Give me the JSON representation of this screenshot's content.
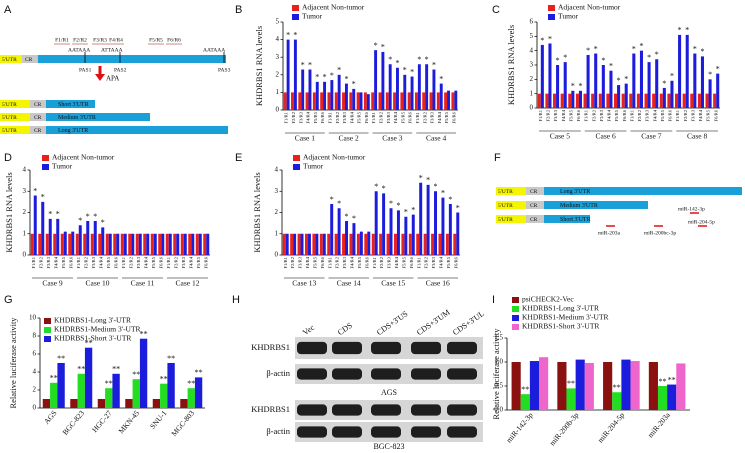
{
  "panel_a": {
    "panel": "A",
    "primers": [
      "F1/R1",
      "F2/R2",
      "F3/R3",
      "F4/R4",
      "F5/R5",
      "F6/R6"
    ],
    "signals": [
      "AATAAA",
      "ATTAAA",
      "AATAAA"
    ],
    "pas": [
      "PAS1",
      "PAS2",
      "PAS3"
    ],
    "apa": "APA",
    "utr5": "5'UTR",
    "cr": "CR",
    "isoforms": [
      "Short 3'UTR",
      "Medium 3'UTR",
      "Long 3'UTR"
    ]
  },
  "panel_f": {
    "panel": "F",
    "utr5": "5'UTR",
    "cr": "CR",
    "isoforms": [
      "Long 3'UTR",
      "Medium 3'UTR",
      "Short 3'UTR"
    ],
    "mirnas": [
      "miR-142-3p",
      "miR-204-5p",
      "miR-203a",
      "miR-200bc-3p"
    ]
  },
  "panel_h": {
    "panel": "H",
    "lanes": [
      "Vec",
      "CDS",
      "CDS+3'US",
      "CDS+3'UM",
      "CDS+3'UL"
    ],
    "rows": [
      "KHDRBS1",
      "β-actin",
      "KHDRBS1",
      "β-actin"
    ],
    "cell_lines": [
      "AGS",
      "BGC-823"
    ]
  },
  "chart_data": [
    {
      "panel": "B",
      "type": "bar",
      "y_label": "KHDRBS1 RNA levels",
      "categories": [
        "F1/R1",
        "F2/R2",
        "F3/R3",
        "F4/R4",
        "F5/R5",
        "F6/R6",
        "F1/R1",
        "F2/R2",
        "F3/R3",
        "F4/R4",
        "F5/R5",
        "F6/R6",
        "F1/R1",
        "F2/R2",
        "F3/R3",
        "F4/R4",
        "F5/R5",
        "F6/R6",
        "F1/R1",
        "F2/R2",
        "F3/R3",
        "F4/R4",
        "F5/R5",
        "F6/R6"
      ],
      "groups": [
        "Case 1",
        "Case 2",
        "Case 3",
        "Case 4"
      ],
      "series": [
        {
          "name": "Adjacent Non-tumor",
          "color": "#e8211c",
          "values": [
            1,
            1,
            1,
            1,
            1,
            1,
            1,
            1,
            1,
            1,
            1,
            1,
            1,
            1,
            1,
            1,
            1,
            1,
            1,
            1,
            1,
            1,
            1,
            1
          ]
        },
        {
          "name": "Tumor",
          "color": "#1c1cdc",
          "values": [
            4.0,
            4.0,
            2.3,
            2.3,
            1.6,
            1.6,
            1.7,
            2.0,
            1.5,
            1.2,
            1.0,
            0.9,
            3.4,
            3.3,
            2.6,
            2.4,
            2.0,
            1.9,
            2.6,
            2.6,
            2.3,
            1.5,
            1.1,
            1.1
          ],
          "significance": [
            "*",
            "*",
            "*",
            "*",
            "*",
            "*",
            "*",
            "*",
            "*",
            "*",
            null,
            null,
            "*",
            "*",
            "*",
            "*",
            "*",
            "*",
            "*",
            "*",
            "*",
            "*",
            null,
            null
          ]
        }
      ],
      "ylim": [
        0,
        5
      ],
      "yticks": [
        0,
        1,
        2,
        3,
        4,
        5
      ]
    },
    {
      "panel": "C",
      "type": "bar",
      "y_label": "KHDRBS1 RNA levels",
      "categories": [
        "F1/R1",
        "F2/R2",
        "F3/R3",
        "F4/R4",
        "F5/R5",
        "F6/R6",
        "F1/R1",
        "F2/R2",
        "F3/R3",
        "F4/R4",
        "F5/R5",
        "F6/R6",
        "F1/R1",
        "F2/R2",
        "F3/R3",
        "F4/R4",
        "F5/R5",
        "F6/R6",
        "F1/R1",
        "F2/R2",
        "F3/R3",
        "F4/R4",
        "F5/R5",
        "F6/R6"
      ],
      "groups": [
        "Case 5",
        "Case 6",
        "Case 7",
        "Case 8"
      ],
      "series": [
        {
          "name": "Adjacent Non-tumor",
          "color": "#e8211c",
          "values": [
            1,
            1,
            1,
            1,
            1,
            1,
            1,
            1,
            1,
            1,
            1,
            1,
            1,
            1,
            1,
            1,
            1,
            1,
            1,
            1,
            1,
            1,
            1,
            1
          ]
        },
        {
          "name": "Tumor",
          "color": "#1c1cdc",
          "values": [
            4.4,
            4.5,
            3.0,
            3.2,
            1.2,
            1.2,
            3.7,
            3.8,
            3.0,
            2.6,
            1.6,
            1.7,
            3.8,
            4.0,
            3.2,
            3.4,
            1.4,
            1.9,
            5.1,
            5.1,
            3.8,
            3.6,
            2.0,
            2.4
          ],
          "significance": [
            "*",
            "*",
            "*",
            "*",
            "*",
            "*",
            "*",
            "*",
            "*",
            "*",
            "*",
            "*",
            "*",
            "*",
            "*",
            "*",
            "*",
            "*",
            "*",
            "*",
            "*",
            "*",
            "*",
            "*"
          ]
        }
      ],
      "ylim": [
        0,
        6
      ],
      "yticks": [
        0,
        1,
        2,
        3,
        4,
        5,
        6
      ]
    },
    {
      "panel": "D",
      "type": "bar",
      "y_label": "KHDRBS1 RNA levels",
      "categories": [
        "F1/R1",
        "F2/R2",
        "F3/R3",
        "F4/R4",
        "F5/R5",
        "F6/R6",
        "F1/R1",
        "F2/R2",
        "F3/R3",
        "F4/R4",
        "F5/R5",
        "F6/R6",
        "F1/R1",
        "F2/R2",
        "F3/R3",
        "F4/R4",
        "F5/R5",
        "F6/R6",
        "F1/R1",
        "F2/R2",
        "F3/R3",
        "F4/R4",
        "F5/R5",
        "F6/R6"
      ],
      "groups": [
        "Case 9",
        "Case 10",
        "Case 11",
        "Case 12"
      ],
      "series": [
        {
          "name": "Adjacent Non-tumor",
          "color": "#e8211c",
          "values": [
            1,
            1,
            1,
            1,
            1,
            1,
            1,
            1,
            1,
            1,
            1,
            1,
            1,
            1,
            1,
            1,
            1,
            1,
            1,
            1,
            1,
            1,
            1,
            1
          ]
        },
        {
          "name": "Tumor",
          "color": "#1c1cdc",
          "values": [
            2.8,
            2.5,
            1.7,
            1.7,
            1.1,
            1.1,
            1.4,
            1.6,
            1.6,
            1.3,
            1.0,
            1.0,
            1.0,
            1.0,
            1.0,
            1.0,
            1.0,
            1.0,
            1.0,
            1.0,
            1.0,
            1.0,
            1.0,
            1.0
          ],
          "significance": [
            "*",
            "*",
            "*",
            "*",
            null,
            null,
            "*",
            "*",
            "*",
            "*",
            null,
            null,
            null,
            null,
            null,
            null,
            null,
            null,
            null,
            null,
            null,
            null,
            null,
            null
          ]
        }
      ],
      "ylim": [
        0,
        4
      ],
      "yticks": [
        0,
        1,
        2,
        3,
        4
      ]
    },
    {
      "panel": "E",
      "type": "bar",
      "y_label": "KHDRBS1 RNA levels",
      "categories": [
        "F1/R1",
        "F2/R2",
        "F3/R3",
        "F4/R4",
        "F5/R5",
        "F6/R6",
        "F1/R1",
        "F2/R2",
        "F3/R3",
        "F4/R4",
        "F5/R5",
        "F6/R6",
        "F1/R1",
        "F2/R2",
        "F3/R3",
        "F4/R4",
        "F5/R5",
        "F6/R6",
        "F1/R1",
        "F2/R2",
        "F3/R3",
        "F4/R4",
        "F5/R5",
        "F6/R6"
      ],
      "groups": [
        "Case 13",
        "Case 14",
        "Case 15",
        "Case 16"
      ],
      "series": [
        {
          "name": "Adjacent Non-tumor",
          "color": "#e8211c",
          "values": [
            1,
            1,
            1,
            1,
            1,
            1,
            1,
            1,
            1,
            1,
            1,
            1,
            1,
            1,
            1,
            1,
            1,
            1,
            1,
            1,
            1,
            1,
            1,
            1
          ]
        },
        {
          "name": "Tumor",
          "color": "#1c1cdc",
          "values": [
            1.0,
            1.0,
            1.0,
            1.0,
            1.0,
            1.0,
            2.4,
            2.2,
            1.6,
            1.5,
            1.1,
            1.1,
            3.0,
            2.9,
            2.2,
            2.1,
            1.8,
            1.9,
            3.4,
            3.3,
            3.0,
            2.7,
            2.4,
            2.0
          ],
          "significance": [
            null,
            null,
            null,
            null,
            null,
            null,
            "*",
            "*",
            "*",
            "*",
            null,
            null,
            "*",
            "*",
            "*",
            "*",
            "*",
            "*",
            "*",
            "*",
            "*",
            "*",
            "*",
            "*"
          ]
        }
      ],
      "ylim": [
        0,
        4
      ],
      "yticks": [
        0,
        1,
        2,
        3,
        4
      ]
    },
    {
      "panel": "G",
      "type": "bar",
      "y_label": "Relative luciferase activity",
      "categories": [
        "AGS",
        "BGC-823",
        "HGC-27",
        "MKN-45",
        "SNU-1",
        "MGC-803"
      ],
      "series": [
        {
          "name": "KHDRBS1-Long 3'-UTR",
          "color": "#8b1010",
          "values": [
            1,
            1,
            1,
            1,
            1,
            1
          ]
        },
        {
          "name": "KHDRBS1-Medium 3'-UTR",
          "color": "#22dd22",
          "values": [
            2.8,
            3.8,
            2.2,
            3.2,
            2.7,
            2.2
          ],
          "significance": [
            "**",
            "**",
            "**",
            "**",
            "**",
            "**"
          ]
        },
        {
          "name": "KHDRBS1-Short 3'-UTR",
          "color": "#1c1cdc",
          "values": [
            5.0,
            6.7,
            3.8,
            7.7,
            5.0,
            3.4
          ],
          "significance": [
            "**",
            "**",
            "**",
            "**",
            "**",
            "**"
          ]
        }
      ],
      "ylim": [
        0,
        10
      ],
      "yticks": [
        0,
        2,
        4,
        6,
        8,
        10
      ]
    },
    {
      "panel": "I",
      "type": "bar",
      "y_label": "Relative luciferase activity",
      "categories": [
        "miR-142-3p",
        "miR-200b-3p",
        "miR-204-5p",
        "miR-203a"
      ],
      "series": [
        {
          "name": "psiCHECK2-Vec",
          "color": "#8b1010",
          "values": [
            1,
            1,
            1,
            1
          ]
        },
        {
          "name": "KHDRBS1-Long 3'-UTR",
          "color": "#22dd22",
          "values": [
            0.33,
            0.45,
            0.37,
            0.5
          ],
          "significance": [
            "**",
            "**",
            "**",
            "**"
          ]
        },
        {
          "name": "KHDRBS1-Medium 3'-UTR",
          "color": "#1c1cdc",
          "values": [
            1.02,
            1.05,
            1.05,
            0.53
          ],
          "significance": [
            null,
            null,
            null,
            "**"
          ]
        },
        {
          "name": "KHDRBS1-Short 3'-UTR",
          "color": "#ee66cc",
          "values": [
            1.1,
            0.98,
            1.02,
            0.97
          ]
        }
      ],
      "ylim": [
        0,
        1.5
      ],
      "yticks": [
        {
          "value": 0,
          "label": "0.0"
        },
        {
          "value": 0.5,
          "label": "0.5"
        },
        {
          "value": 1,
          "label": "1.0"
        },
        {
          "value": 1.5,
          "label": "1.5"
        }
      ]
    }
  ]
}
